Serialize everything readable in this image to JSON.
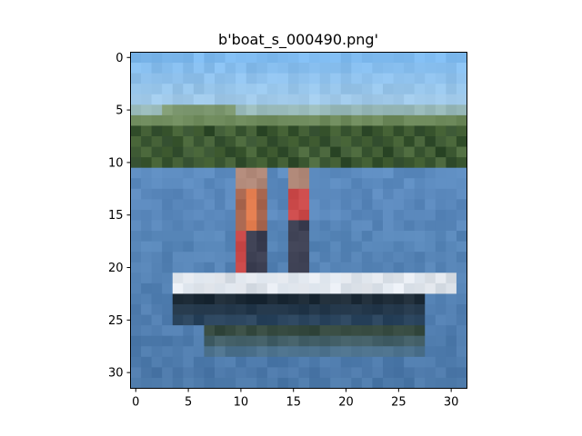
{
  "chart_data": {
    "type": "heatmap",
    "title": "b'boat_s_000490.png'",
    "xlabel": "",
    "ylabel": "",
    "width": 32,
    "height": 32,
    "xlim": [
      -0.5,
      31.5
    ],
    "ylim": [
      31.5,
      -0.5
    ],
    "xticks": [
      0,
      5,
      10,
      15,
      20,
      25,
      30
    ],
    "yticks": [
      0,
      5,
      10,
      15,
      20,
      25,
      30
    ],
    "grid": false,
    "legend": "none",
    "palette": {
      "sky_top": "#7db9ee",
      "sky_bottom": "#a9cde8",
      "far_trees": "#7f9a72",
      "trees_dark": "#2f4a2b",
      "trees_mid": "#5c7a45",
      "water": "#5d8cc0",
      "water_dark": "#3f6a98",
      "shirt_orange": "#e07a4c",
      "shirt_red": "#c94848",
      "person_dark": "#3c3f52",
      "skin": "#b08878",
      "boat_white": "#d9e0e8",
      "boat_hull_dark": "#1c2a36",
      "reflection": "#364a40"
    }
  }
}
